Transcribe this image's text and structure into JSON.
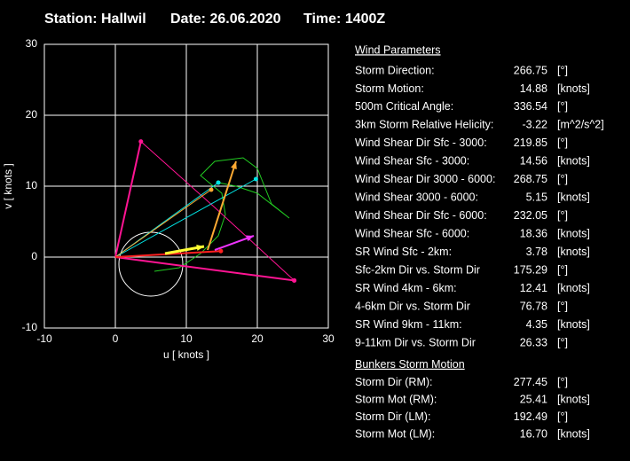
{
  "header": {
    "station": "Station: Hallwil",
    "date": "Date: 26.06.2020",
    "time": "Time: 1400Z"
  },
  "chart_data": {
    "type": "hodograph",
    "xlabel": "u  [ knots ]",
    "ylabel": "v  [ knots ]",
    "xlim": [
      -10,
      30
    ],
    "ylim": [
      -10,
      30
    ],
    "xticks": [
      -10,
      0,
      10,
      20,
      30
    ],
    "yticks": [
      -10,
      0,
      10,
      20,
      30
    ],
    "grid": true,
    "circle": {
      "u": 5,
      "v": -1,
      "r": 4.5,
      "color": "#ffffff"
    },
    "series": [
      {
        "color": "#22cc22",
        "width": 1,
        "x": [
          5.5,
          9,
          12,
          14.5,
          15.5,
          15,
          12,
          14,
          18,
          20,
          22,
          24.5,
          20,
          17,
          14.5
        ],
        "y": [
          -2,
          -1.5,
          0.5,
          3,
          6,
          9,
          11.5,
          13.5,
          14,
          12.5,
          7.5,
          5.5,
          9,
          10,
          10.5
        ]
      },
      {
        "color": "#ff1493",
        "width": 2,
        "x": [
          0,
          25.2
        ],
        "y": [
          0,
          -3.3
        ]
      },
      {
        "color": "#ff1493",
        "width": 2,
        "x": [
          0,
          3.6
        ],
        "y": [
          0,
          16.3
        ]
      },
      {
        "color": "#ff1493",
        "width": 1,
        "x": [
          3.6,
          14,
          25.2
        ],
        "y": [
          16.3,
          7,
          -3.3
        ]
      },
      {
        "color": "#00e5e5",
        "width": 1,
        "x": [
          0,
          19.8
        ],
        "y": [
          0,
          11
        ]
      },
      {
        "color": "#00e5e5",
        "width": 1,
        "x": [
          0,
          14.5
        ],
        "y": [
          0,
          10.5
        ]
      },
      {
        "color": "#ffaa33",
        "width": 1,
        "x": [
          0,
          13.5
        ],
        "y": [
          0,
          9.5
        ]
      },
      {
        "color": "#ff2020",
        "width": 2,
        "x": [
          0,
          14.86
        ],
        "y": [
          0,
          0.85
        ]
      },
      {
        "color": "#ffff33",
        "width": 3,
        "x": [
          7,
          12.5
        ],
        "y": [
          0.5,
          1.5
        ],
        "arrow": true
      },
      {
        "color": "#ffaa33",
        "width": 2,
        "x": [
          13,
          17
        ],
        "y": [
          1,
          13.5
        ],
        "arrow": true
      },
      {
        "color": "#ee33ff",
        "width": 2,
        "x": [
          14,
          19.5
        ],
        "y": [
          1,
          3
        ],
        "arrow": true
      }
    ]
  },
  "parameters": {
    "sections": [
      {
        "title": "Wind Parameters",
        "rows": [
          {
            "label": "Storm Direction:",
            "value": "266.75",
            "unit": "[°]",
            "color": "#ff2020"
          },
          {
            "label": "Storm Motion:",
            "value": "14.88",
            "unit": "[knots]",
            "color": "#ff2020"
          },
          {
            "label": "500m Critical Angle:",
            "value": "336.54",
            "unit": "[°]",
            "color": "#dcb0ff"
          },
          {
            "label": "3km Storm Relative Helicity:",
            "value": "-3.22",
            "unit": "[m^2/s^2]",
            "color": "#33cc33"
          },
          {
            "label": "Wind Shear Dir Sfc - 3000:",
            "value": "219.85",
            "unit": "[°]",
            "color": "#33dddd"
          },
          {
            "label": "Wind Shear Sfc - 3000:",
            "value": "14.56",
            "unit": "[knots]",
            "color": "#33dddd"
          },
          {
            "label": "Wind Shear Dir 3000 - 6000:",
            "value": "268.75",
            "unit": "[°]",
            "color": "#33dddd"
          },
          {
            "label": "Wind Shear 3000 - 6000:",
            "value": "5.15",
            "unit": "[knots]",
            "color": "#33dddd"
          },
          {
            "label": "Wind Shear Dir Sfc - 6000:",
            "value": "232.05",
            "unit": "[°]",
            "color": "#33dddd"
          },
          {
            "label": "Wind Shear Sfc - 6000:",
            "value": "18.36",
            "unit": "[knots]",
            "color": "#33dddd"
          },
          {
            "label": "SR Wind Sfc - 2km:",
            "value": "3.78",
            "unit": "[knots]",
            "color": "#ffff33"
          },
          {
            "label": "Sfc-2km Dir vs. Storm Dir",
            "value": "175.29",
            "unit": "[°]",
            "color": "#ffff33"
          },
          {
            "label": "SR Wind 4km - 6km:",
            "value": "12.41",
            "unit": "[knots]",
            "color": "#ffaa33"
          },
          {
            "label": "4-6km Dir vs. Storm Dir",
            "value": "76.78",
            "unit": "[°]",
            "color": "#ffaa33"
          },
          {
            "label": "SR Wind 9km - 11km:",
            "value": "4.35",
            "unit": "[knots]",
            "color": "#cc33ff"
          },
          {
            "label": "9-11km Dir vs. Storm Dir",
            "value": "26.33",
            "unit": "[°]",
            "color": "#ff33ff"
          }
        ]
      },
      {
        "title": "Bunkers Storm Motion",
        "rows": [
          {
            "label": "Storm Dir (RM):",
            "value": "277.45",
            "unit": "[°]",
            "color": "#ff3399"
          },
          {
            "label": "Storm Mot (RM):",
            "value": "25.41",
            "unit": "[knots]",
            "color": "#ff3399"
          },
          {
            "label": "Storm Dir (LM):",
            "value": "192.49",
            "unit": "[°]",
            "color": "#ff3399"
          },
          {
            "label": "Storm Mot (LM):",
            "value": "16.70",
            "unit": "[knots]",
            "color": "#ff3399"
          }
        ]
      }
    ]
  }
}
